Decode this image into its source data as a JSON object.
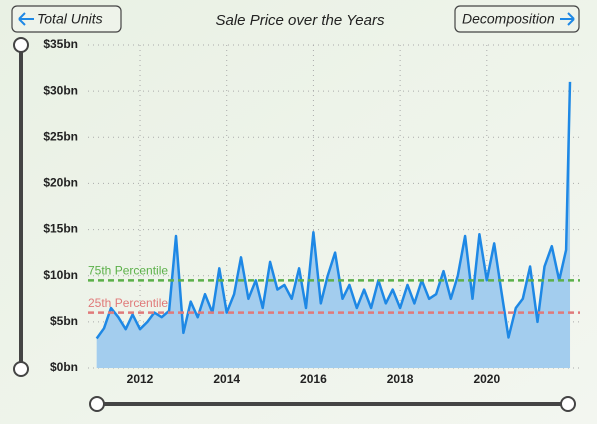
{
  "chart_data": {
    "type": "area",
    "title": "Sale Price over the Years",
    "buttons": [
      "Total Units",
      "Decomposition"
    ],
    "x": [
      2011.0,
      2011.17,
      2011.33,
      2011.5,
      2011.67,
      2011.83,
      2012.0,
      2012.17,
      2012.33,
      2012.5,
      2012.67,
      2012.83,
      2013.0,
      2013.17,
      2013.33,
      2013.5,
      2013.67,
      2013.83,
      2014.0,
      2014.17,
      2014.33,
      2014.5,
      2014.67,
      2014.83,
      2015.0,
      2015.17,
      2015.33,
      2015.5,
      2015.67,
      2015.83,
      2016.0,
      2016.17,
      2016.33,
      2016.5,
      2016.67,
      2016.83,
      2017.0,
      2017.17,
      2017.33,
      2017.5,
      2017.67,
      2017.83,
      2018.0,
      2018.17,
      2018.33,
      2018.5,
      2018.67,
      2018.83,
      2019.0,
      2019.17,
      2019.33,
      2019.5,
      2019.67,
      2019.83,
      2020.0,
      2020.17,
      2020.33,
      2020.5,
      2020.67,
      2020.83,
      2021.0,
      2021.17,
      2021.33,
      2021.5,
      2021.67,
      2021.83,
      2021.92
    ],
    "series": [
      {
        "name": "Sale Price",
        "color": "#1e88e5",
        "fill": "#a3cdee",
        "values": [
          3.2,
          4.3,
          6.5,
          5.5,
          4.2,
          5.8,
          4.2,
          5.0,
          6.0,
          5.5,
          6.2,
          14.3,
          3.8,
          7.2,
          5.5,
          8.0,
          6.0,
          10.8,
          6.0,
          8.0,
          12.0,
          7.5,
          9.5,
          6.5,
          11.5,
          8.5,
          9.0,
          7.5,
          10.8,
          6.5,
          14.7,
          7.0,
          10.0,
          12.5,
          7.5,
          9.0,
          6.5,
          8.5,
          6.5,
          9.5,
          7.0,
          8.5,
          6.5,
          9.0,
          7.0,
          9.5,
          7.5,
          8.0,
          10.5,
          7.5,
          10.0,
          14.3,
          7.5,
          14.5,
          9.5,
          13.5,
          8.5,
          3.3,
          6.5,
          7.5,
          11.0,
          5.0,
          11.0,
          13.2,
          9.5,
          12.8,
          31.0
        ]
      }
    ],
    "reference_lines": [
      {
        "name": "75th Percentile",
        "value": 9.5,
        "color": "#5cb04a"
      },
      {
        "name": "25th Percentile",
        "value": 6.0,
        "color": "#e07a7a"
      }
    ],
    "xlim": [
      2010.8,
      2022.15
    ],
    "xticks": [
      2012,
      2014,
      2016,
      2018,
      2020
    ],
    "ylim": [
      0,
      35
    ],
    "yticks": [
      {
        "value": 0,
        "label": "$0bn"
      },
      {
        "value": 5,
        "label": "$5bn"
      },
      {
        "value": 10,
        "label": "$10bn"
      },
      {
        "value": 15,
        "label": "$15bn"
      },
      {
        "value": 20,
        "label": "$20bn"
      },
      {
        "value": 25,
        "label": "$25bn"
      },
      {
        "value": 30,
        "label": "$30bn"
      },
      {
        "value": 35,
        "label": "$35bn"
      }
    ],
    "grid": true
  }
}
